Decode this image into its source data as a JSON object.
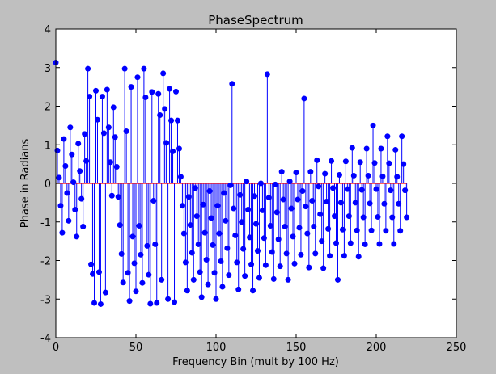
{
  "chart_data": {
    "type": "stem",
    "title": "PhaseSpectrum",
    "xlabel": "Frequency Bin (mult by 100 Hz)",
    "ylabel": "Phase in Radians",
    "color": "#0000ff",
    "baseline_color": "#ff0000",
    "xlim": [
      0,
      250
    ],
    "xticks": [
      0,
      50,
      100,
      150,
      200,
      250
    ],
    "ylim": [
      -4,
      4
    ],
    "yticks": [
      -4,
      -3,
      -2,
      -1,
      0,
      1,
      2,
      3,
      4
    ],
    "values": [
      3.13,
      0.85,
      0.15,
      -0.58,
      -1.28,
      1.15,
      0.45,
      -0.25,
      -0.97,
      1.45,
      0.75,
      0.03,
      -0.68,
      -1.38,
      1.03,
      0.32,
      -0.4,
      -1.12,
      1.28,
      0.58,
      2.97,
      2.25,
      -2.1,
      -2.35,
      -3.1,
      2.4,
      1.65,
      -2.3,
      -3.13,
      2.25,
      1.3,
      -2.83,
      2.43,
      1.45,
      0.55,
      -0.32,
      1.97,
      1.2,
      0.43,
      -0.35,
      -1.08,
      -1.83,
      -2.57,
      2.97,
      1.35,
      -2.32,
      -3.05,
      2.5,
      -1.38,
      -2.07,
      -2.8,
      2.75,
      -1.1,
      -1.85,
      -2.58,
      2.97,
      2.23,
      -1.62,
      -2.37,
      -3.12,
      2.37,
      -0.45,
      -1.58,
      -3.1,
      2.32,
      1.77,
      -2.5,
      2.85,
      1.93,
      1.05,
      -3.0,
      2.45,
      1.63,
      0.83,
      -3.08,
      2.38,
      1.63,
      0.9,
      0.17,
      -0.58,
      -1.3,
      -2.05,
      -2.78,
      -0.35,
      -1.08,
      -1.8,
      -2.5,
      -0.12,
      -0.85,
      -1.58,
      -2.3,
      -2.95,
      -0.55,
      -1.28,
      -1.98,
      -2.62,
      -0.2,
      -0.9,
      -1.6,
      -2.32,
      -3.0,
      -0.58,
      -1.3,
      -2.02,
      -2.68,
      -0.25,
      -0.97,
      -1.68,
      -2.38,
      -0.05,
      2.58,
      -0.65,
      -1.35,
      -2.05,
      -2.75,
      -0.3,
      -1.0,
      -1.7,
      -2.4,
      0.05,
      -0.68,
      -1.4,
      -2.1,
      -2.78,
      -0.33,
      -1.05,
      -1.75,
      -2.45,
      0.0,
      -0.7,
      -1.42,
      -2.12,
      2.83,
      -0.37,
      -1.1,
      -1.78,
      -2.48,
      -0.03,
      -0.75,
      -1.45,
      -2.15,
      0.3,
      -0.42,
      -1.12,
      -1.82,
      -2.5,
      0.05,
      -0.65,
      -1.38,
      -2.08,
      0.28,
      -0.42,
      -1.15,
      -1.85,
      -0.2,
      2.2,
      -0.6,
      -1.3,
      -2.18,
      0.3,
      -0.45,
      -1.12,
      -1.82,
      0.6,
      -0.08,
      -0.8,
      -1.5,
      -2.2,
      0.25,
      -0.47,
      -1.18,
      -1.88,
      0.58,
      -0.12,
      -0.85,
      -1.55,
      -2.5,
      0.22,
      -0.5,
      -1.2,
      -1.88,
      0.57,
      -0.15,
      -0.85,
      -1.55,
      0.92,
      0.2,
      -0.5,
      -1.22,
      -1.9,
      0.55,
      -0.17,
      -0.88,
      -1.58,
      0.9,
      0.2,
      -0.52,
      -1.22,
      1.5,
      0.53,
      -0.15,
      -0.87,
      -1.57,
      0.9,
      0.18,
      -0.53,
      -1.23,
      1.22,
      0.52,
      -0.18,
      -0.88,
      -1.57,
      0.87,
      0.17,
      -0.53,
      -1.23,
      1.22,
      0.5,
      -0.18,
      -0.88
    ]
  }
}
